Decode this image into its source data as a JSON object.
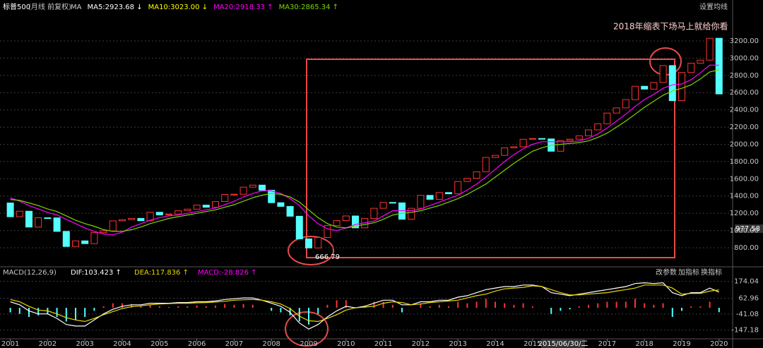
{
  "chart_data": {
    "type": "candlestick",
    "title": "标普500",
    "subtitle": "(月线 前复权)",
    "header_labels": [
      {
        "label": "MA",
        "color": "#cccccc"
      },
      {
        "label": "MA5:2923.68 ↓",
        "color": "#ffffff"
      },
      {
        "label": "MA10:3023.00 ↓",
        "color": "#ffff00"
      },
      {
        "label": "MA20:2918.33 ↑",
        "color": "#ff00ff"
      },
      {
        "label": "MA30:2865.34 ↑",
        "color": "#7cd600"
      }
    ],
    "settings_label": "设置均线",
    "annotation": "2018年缩表下场马上就给你看",
    "low_label": "666.79",
    "last_price_label": "977.58",
    "cursor_label": "2015/06/30/二",
    "up_color": "#ff3232",
    "down_color": "#54ffff",
    "grid": true,
    "categories": [
      "2001",
      null,
      null,
      null,
      "2002",
      null,
      null,
      null,
      "2003",
      null,
      null,
      null,
      "2004",
      null,
      null,
      null,
      "2005",
      null,
      null,
      null,
      "2006",
      null,
      null,
      null,
      "2007",
      null,
      null,
      null,
      "2008",
      null,
      null,
      null,
      "2009",
      null,
      null,
      null,
      "2010",
      null,
      null,
      null,
      "2011",
      null,
      null,
      null,
      "2012",
      null,
      null,
      null,
      "2013",
      null,
      null,
      null,
      "2014",
      null,
      null,
      null,
      "2015",
      null,
      null,
      null,
      null,
      null,
      null,
      null,
      "2017",
      null,
      null,
      null,
      "2018",
      null,
      null,
      null,
      "2019",
      null,
      null,
      null,
      "2020"
    ],
    "open": [
      1320,
      1160,
      1224,
      1040,
      1148,
      1147,
      990,
      815,
      880,
      848,
      975,
      996,
      1112,
      1126,
      1141,
      1114,
      1212,
      1181,
      1191,
      1229,
      1248,
      1295,
      1270,
      1336,
      1418,
      1421,
      1503,
      1527,
      1468,
      1323,
      1280,
      1166,
      903,
      798,
      919,
      1057,
      1115,
      1169,
      1031,
      1141,
      1258,
      1326,
      1321,
      1131,
      1258,
      1408,
      1362,
      1441,
      1426,
      1569,
      1606,
      1682,
      1848,
      1872,
      1960,
      1972,
      2059,
      2068,
      2063,
      1920,
      2044,
      2060,
      2099,
      2168,
      2239,
      2363,
      2423,
      2519,
      2674,
      2641,
      2718,
      2914,
      2507,
      2834,
      2942,
      2977,
      3231
    ],
    "close": [
      1160,
      1224,
      1040,
      1148,
      1147,
      990,
      815,
      880,
      848,
      975,
      996,
      1112,
      1126,
      1141,
      1114,
      1212,
      1181,
      1191,
      1229,
      1248,
      1295,
      1270,
      1336,
      1418,
      1421,
      1503,
      1527,
      1468,
      1323,
      1280,
      1166,
      903,
      798,
      919,
      1057,
      1115,
      1169,
      1031,
      1141,
      1258,
      1326,
      1321,
      1131,
      1258,
      1408,
      1362,
      1441,
      1426,
      1569,
      1606,
      1682,
      1848,
      1872,
      1960,
      1972,
      2059,
      2068,
      2063,
      1920,
      2044,
      2060,
      2099,
      2168,
      2239,
      2363,
      2423,
      2519,
      2674,
      2641,
      2718,
      2914,
      2507,
      2834,
      2942,
      2977,
      3231,
      2585
    ],
    "series": [
      {
        "name": "MA20",
        "color": "#ff00ff",
        "values": [
          1380,
          1340,
          1290,
          1250,
          1210,
          1180,
          1130,
          1080,
          1030,
          990,
          960,
          950,
          980,
          1040,
          1080,
          1120,
          1150,
          1170,
          1180,
          1200,
          1220,
          1240,
          1260,
          1300,
          1340,
          1390,
          1430,
          1460,
          1460,
          1430,
          1370,
          1290,
          1170,
          1080,
          1020,
          1000,
          1030,
          1070,
          1090,
          1110,
          1170,
          1230,
          1230,
          1230,
          1250,
          1290,
          1330,
          1370,
          1410,
          1470,
          1540,
          1620,
          1710,
          1800,
          1880,
          1950,
          2000,
          2030,
          2030,
          2030,
          2030,
          2040,
          2070,
          2120,
          2190,
          2270,
          2350,
          2440,
          2520,
          2580,
          2650,
          2690,
          2700,
          2750,
          2830,
          2920,
          2918
        ]
      },
      {
        "name": "MA30",
        "color": "#7cd600",
        "values": [
          1360,
          1350,
          1320,
          1290,
          1250,
          1220,
          1170,
          1120,
          1080,
          1050,
          1010,
          990,
          990,
          1010,
          1040,
          1080,
          1110,
          1140,
          1160,
          1180,
          1200,
          1220,
          1240,
          1270,
          1300,
          1340,
          1380,
          1410,
          1430,
          1420,
          1390,
          1330,
          1240,
          1150,
          1080,
          1040,
          1030,
          1050,
          1070,
          1090,
          1130,
          1180,
          1200,
          1210,
          1230,
          1260,
          1290,
          1330,
          1370,
          1420,
          1480,
          1540,
          1620,
          1700,
          1780,
          1850,
          1920,
          1960,
          1990,
          2000,
          2010,
          2020,
          2040,
          2080,
          2130,
          2200,
          2270,
          2350,
          2430,
          2500,
          2570,
          2620,
          2650,
          2690,
          2760,
          2840,
          2865
        ]
      }
    ],
    "ylim": [
      628,
      3593
    ],
    "yticks": [
      {
        "value": 800,
        "label": "800.00"
      },
      {
        "value": 1000,
        "label": "1000.00"
      },
      {
        "value": 1200,
        "label": "1200.00"
      },
      {
        "value": 1400,
        "label": "1400.00"
      },
      {
        "value": 1600,
        "label": "1600.00"
      },
      {
        "value": 1800,
        "label": "1800.00"
      },
      {
        "value": 2000,
        "label": "2000.00"
      },
      {
        "value": 2200,
        "label": "2200.00"
      },
      {
        "value": 2400,
        "label": "2400.00"
      },
      {
        "value": 2600,
        "label": "2600.00"
      },
      {
        "value": 2800,
        "label": "2800.00"
      },
      {
        "value": 3000,
        "label": "3000.00"
      },
      {
        "value": 3200,
        "label": "3200.00"
      }
    ],
    "macd": {
      "title": "MACD(12,26,9)",
      "dif_label": "DIF:103.423 ↑",
      "dea_label": "DEA:117.836 ↑",
      "macd_label": "MACD:-28.826 ↑",
      "buttons": [
        "改参数",
        "加指标",
        "换指标"
      ],
      "ylim": [
        -195,
        205
      ],
      "yticks": [
        174.04,
        62.96,
        -41.08,
        -147.18
      ],
      "histogram": [
        -30,
        -40,
        -60,
        -50,
        -40,
        -60,
        -90,
        -80,
        -60,
        -20,
        10,
        30,
        30,
        25,
        15,
        20,
        10,
        5,
        10,
        10,
        15,
        10,
        15,
        25,
        20,
        25,
        20,
        0,
        -20,
        -30,
        -50,
        -90,
        -110,
        -40,
        20,
        50,
        50,
        0,
        10,
        40,
        40,
        20,
        -30,
        0,
        30,
        10,
        20,
        10,
        40,
        30,
        40,
        60,
        40,
        30,
        20,
        30,
        10,
        0,
        -40,
        -20,
        -10,
        10,
        20,
        30,
        40,
        40,
        40,
        60,
        30,
        20,
        30,
        -60,
        -20,
        10,
        10,
        40,
        -28.826
      ],
      "dif": {
        "color": "#ffffff",
        "values": [
          40,
          20,
          -20,
          -40,
          -40,
          -70,
          -110,
          -120,
          -120,
          -80,
          -40,
          -10,
          10,
          20,
          20,
          30,
          30,
          30,
          35,
          35,
          40,
          40,
          45,
          55,
          60,
          65,
          65,
          50,
          30,
          10,
          -30,
          -100,
          -140,
          -110,
          -60,
          -20,
          10,
          0,
          10,
          30,
          50,
          50,
          20,
          20,
          40,
          40,
          50,
          50,
          70,
          80,
          100,
          120,
          130,
          140,
          140,
          150,
          150,
          140,
          100,
          90,
          80,
          90,
          100,
          110,
          120,
          130,
          140,
          160,
          165,
          160,
          165,
          100,
          80,
          100,
          100,
          130,
          103.423
        ]
      },
      "dea": {
        "color": "#e8d800",
        "values": [
          55,
          40,
          10,
          -15,
          -20,
          -40,
          -65,
          -80,
          -90,
          -70,
          -45,
          -25,
          -5,
          8,
          13,
          20,
          25,
          28,
          30,
          30,
          33,
          35,
          38,
          43,
          50,
          53,
          55,
          50,
          40,
          25,
          -5,
          -55,
          -85,
          -90,
          -70,
          -45,
          -15,
          0,
          5,
          10,
          30,
          40,
          35,
          20,
          25,
          35,
          40,
          45,
          50,
          65,
          80,
          90,
          110,
          125,
          130,
          135,
          145,
          140,
          120,
          100,
          85,
          85,
          90,
          95,
          100,
          110,
          120,
          130,
          150,
          150,
          150,
          130,
          90,
          95,
          95,
          110,
          117.836
        ]
      }
    }
  }
}
